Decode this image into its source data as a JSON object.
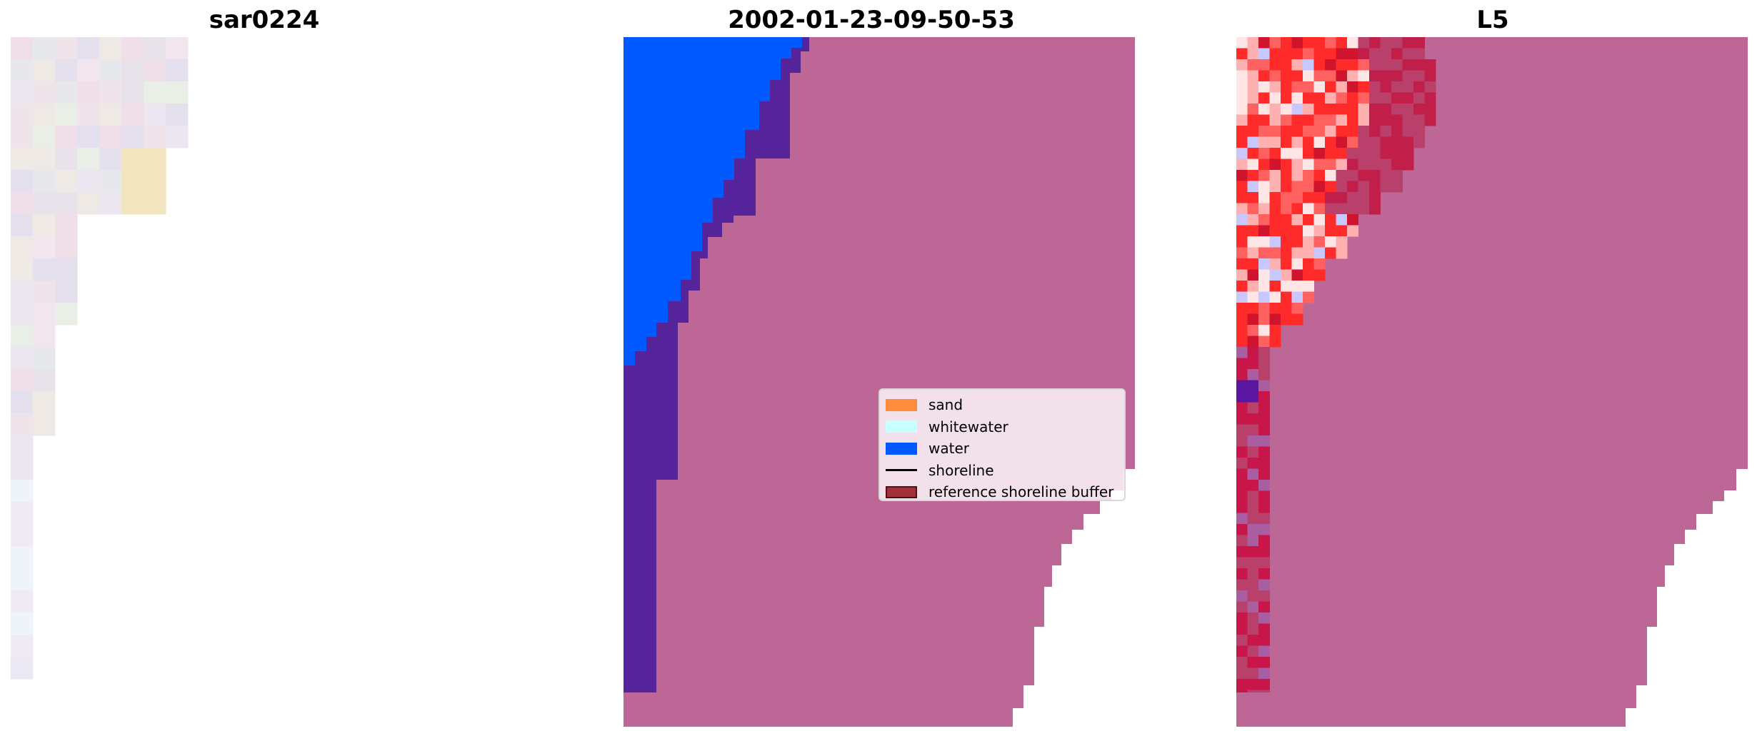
{
  "figure": {
    "panels": [
      {
        "title": "sar0224"
      },
      {
        "title": "2002-01-23-09-50-53"
      },
      {
        "title": "L5"
      }
    ]
  },
  "legend": {
    "items": [
      {
        "label": "sand",
        "type": "patch",
        "color": "#ff8c3c"
      },
      {
        "label": "whitewater",
        "type": "patch",
        "color": "#c8ffff"
      },
      {
        "label": "water",
        "type": "patch",
        "color": "#005aff"
      },
      {
        "label": "shoreline",
        "type": "line",
        "color": "#000000"
      },
      {
        "label": "reference shoreline buffer",
        "type": "patch",
        "color": "#a0303a",
        "edge": "#5a0c10"
      }
    ]
  },
  "colors": {
    "buffer_overlay": "#bc6795",
    "water_on_buffer": "#56249a",
    "water": "#005aff",
    "rgb_pixel_base": "#eae6ea",
    "index_map_red": "#ff1a1a",
    "index_map_blue": "#8c3cff"
  }
}
